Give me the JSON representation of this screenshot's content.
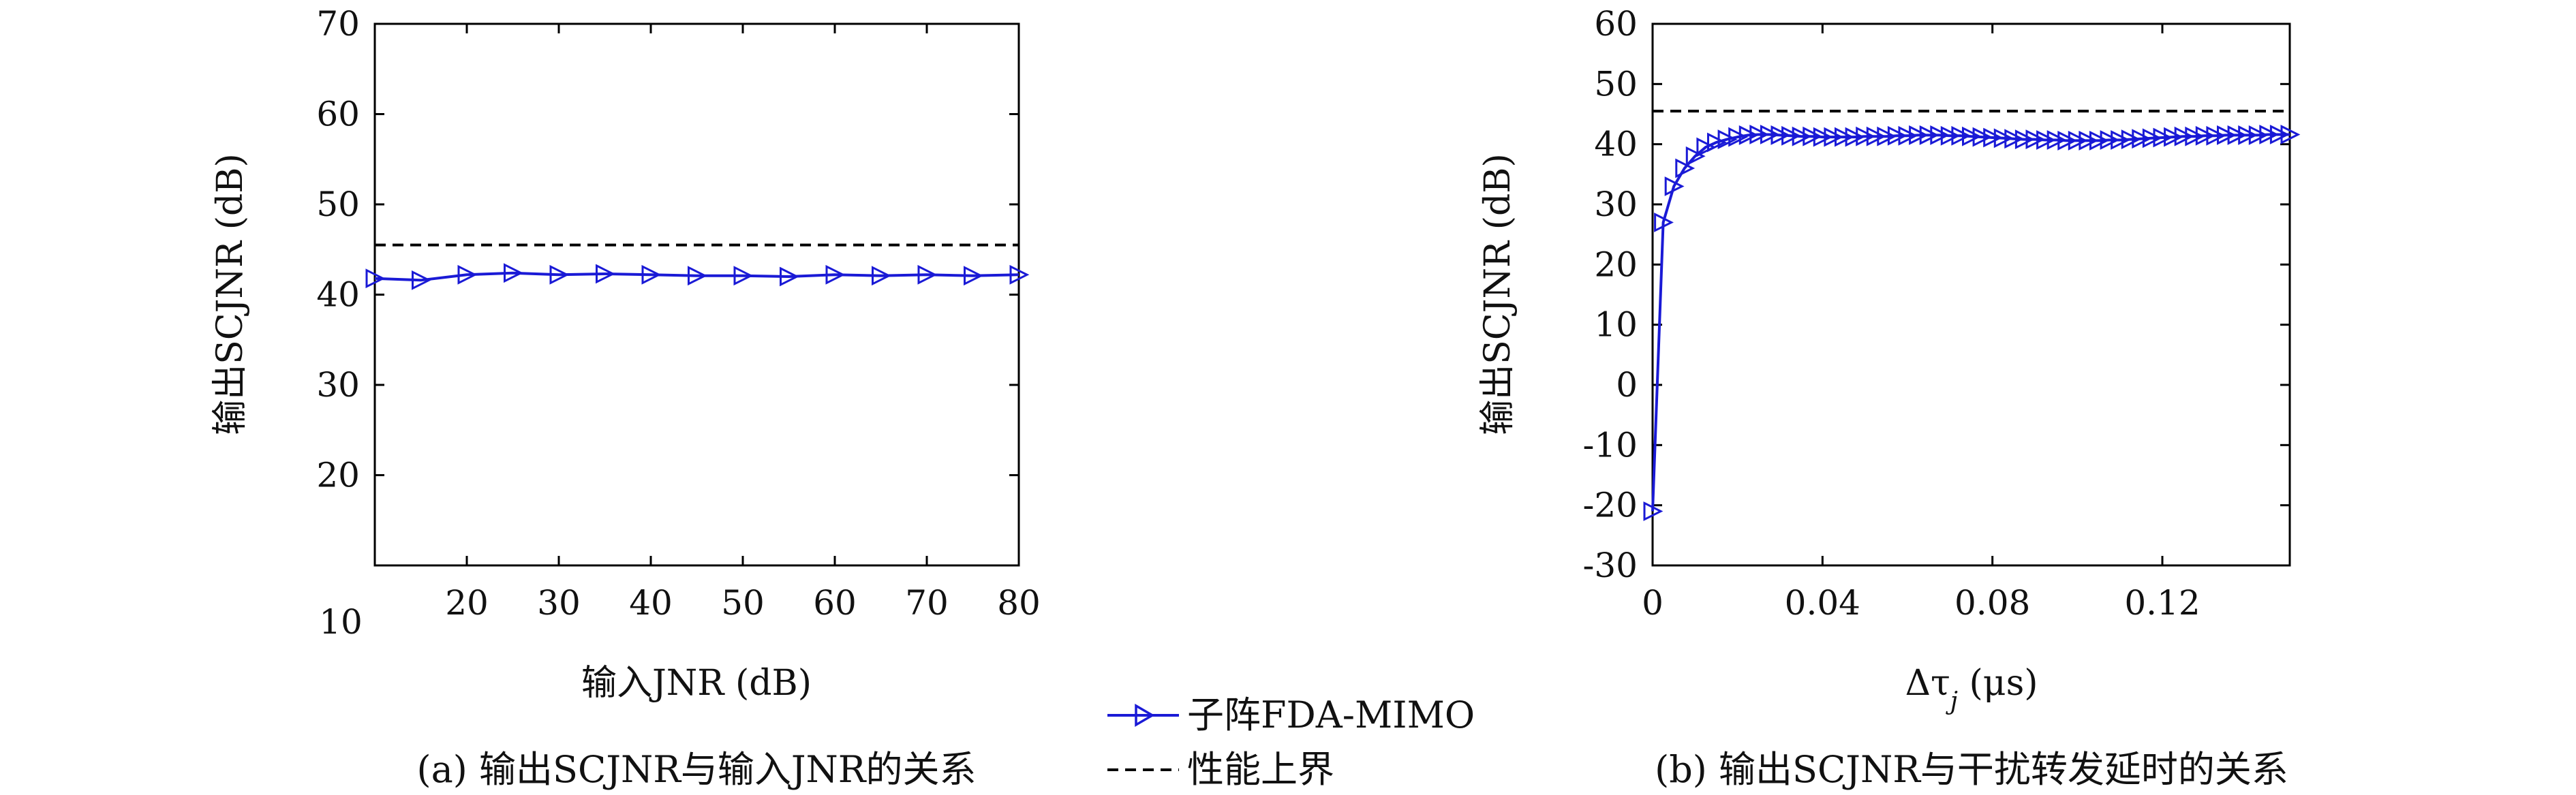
{
  "chart_data": [
    {
      "type": "line",
      "caption": "(a) 输出SCJNR与输入JNR的关系",
      "xlabel": "输入JNR (dB)",
      "ylabel": "输出SCJNR (dB)",
      "xlim": [
        10,
        80
      ],
      "ylim": [
        10,
        70
      ],
      "x_ticks": [
        "10",
        "20",
        "30",
        "40",
        "50",
        "60",
        "70",
        "80"
      ],
      "y_ticks": [
        "20",
        "30",
        "40",
        "50",
        "60",
        "70"
      ],
      "origin_tick": "10",
      "grid": false,
      "series": [
        {
          "name": "子阵FDA-MIMO",
          "color": "#1a1ad6",
          "marker": "triangle-right",
          "x": [
            10,
            15,
            20,
            25,
            30,
            35,
            40,
            45,
            50,
            55,
            60,
            65,
            70,
            75,
            80
          ],
          "y": [
            41.8,
            41.6,
            42.2,
            42.4,
            42.2,
            42.3,
            42.2,
            42.1,
            42.1,
            42.0,
            42.2,
            42.1,
            42.2,
            42.1,
            42.2
          ]
        },
        {
          "name": "性能上界",
          "color": "#000000",
          "style": "dashed",
          "x": [
            10,
            80
          ],
          "y": [
            45.5,
            45.5
          ]
        }
      ]
    },
    {
      "type": "line",
      "caption": "(b) 输出SCJNR与干扰转发延时的关系",
      "xlabel": "Δτ_j (μs)",
      "ylabel": "输出SCJNR (dB)",
      "xlim": [
        0,
        0.15
      ],
      "ylim": [
        -30,
        60
      ],
      "x_ticks": [
        "0",
        "0.04",
        "0.08",
        "0.12"
      ],
      "x_tick_values": [
        0,
        0.04,
        0.08,
        0.12
      ],
      "y_ticks": [
        "-30",
        "-20",
        "-10",
        "0",
        "10",
        "20",
        "30",
        "40",
        "50",
        "60"
      ],
      "grid": false,
      "series": [
        {
          "name": "子阵FDA-MIMO",
          "color": "#1a1ad6",
          "marker": "triangle-right",
          "x": [
            0,
            0.0025,
            0.005,
            0.0075,
            0.01,
            0.0125,
            0.015,
            0.0175,
            0.02,
            0.0225,
            0.025,
            0.0275,
            0.03,
            0.0325,
            0.035,
            0.0375,
            0.04,
            0.0425,
            0.045,
            0.0475,
            0.05,
            0.0525,
            0.055,
            0.0575,
            0.06,
            0.0625,
            0.065,
            0.0675,
            0.07,
            0.0725,
            0.075,
            0.0775,
            0.08,
            0.0825,
            0.085,
            0.0875,
            0.09,
            0.0925,
            0.095,
            0.0975,
            0.1,
            0.1025,
            0.105,
            0.1075,
            0.11,
            0.1125,
            0.115,
            0.1175,
            0.12,
            0.1225,
            0.125,
            0.1275,
            0.13,
            0.1325,
            0.135,
            0.1375,
            0.14,
            0.1425,
            0.145,
            0.1475,
            0.15
          ],
          "y": [
            -21,
            27,
            33,
            36,
            38,
            39.5,
            40.3,
            40.8,
            41.2,
            41.5,
            41.6,
            41.6,
            41.5,
            41.4,
            41.3,
            41.3,
            41.2,
            41.2,
            41.2,
            41.2,
            41.3,
            41.3,
            41.3,
            41.4,
            41.4,
            41.5,
            41.5,
            41.5,
            41.4,
            41.4,
            41.3,
            41.2,
            41.1,
            41.0,
            40.9,
            40.8,
            40.8,
            40.7,
            40.7,
            40.6,
            40.6,
            40.6,
            40.6,
            40.7,
            40.7,
            40.8,
            40.9,
            41.0,
            41.1,
            41.2,
            41.3,
            41.3,
            41.4,
            41.4,
            41.5,
            41.5,
            41.5,
            41.5,
            41.6,
            41.6,
            41.6
          ]
        },
        {
          "name": "性能上界",
          "color": "#000000",
          "style": "dashed",
          "x": [
            0,
            0.15
          ],
          "y": [
            45.5,
            45.5
          ]
        }
      ]
    }
  ],
  "legend": {
    "placement": "bottom-center",
    "items": [
      {
        "label": "子阵FDA-MIMO",
        "color": "#1a1ad6",
        "style": "solid-marker"
      },
      {
        "label": "性能上界",
        "color": "#000000",
        "style": "dashed"
      }
    ]
  }
}
